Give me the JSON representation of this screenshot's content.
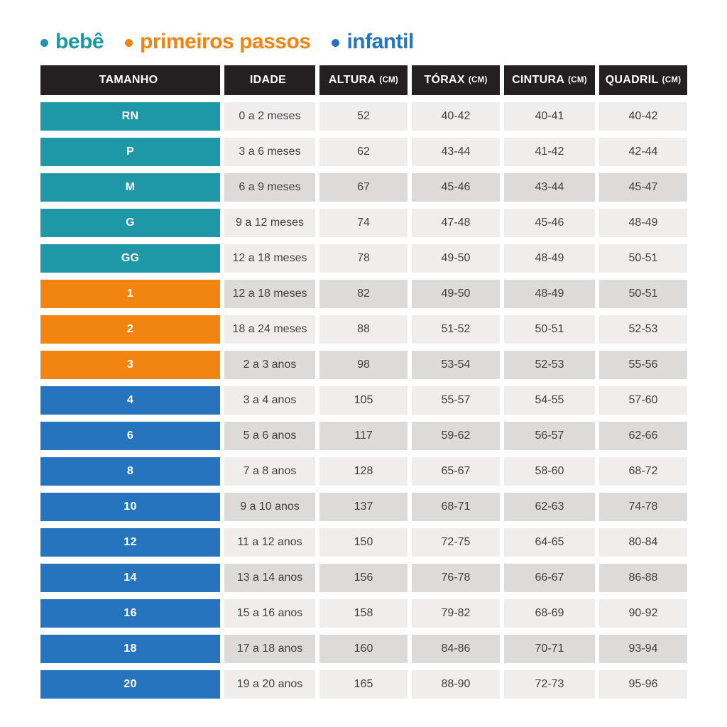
{
  "legend": {
    "items": [
      {
        "label": "bebê",
        "color": "#1e97a6"
      },
      {
        "label": "primeiros passos",
        "color": "#f28511"
      },
      {
        "label": "infantil",
        "color": "#2674bd"
      }
    ]
  },
  "colors": {
    "group_bebe": "#1e97a6",
    "group_primeiros_passos": "#f28511",
    "group_infantil": "#2674bd",
    "header_bg": "#242021",
    "row_light": "#efeeec",
    "row_dark": "#dcdbd9",
    "text": "#414042"
  },
  "chart_data": {
    "type": "table",
    "title": "",
    "columns": [
      {
        "label": "TAMANHO",
        "unit": ""
      },
      {
        "label": "IDADE",
        "unit": ""
      },
      {
        "label": "ALTURA",
        "unit": "(CM)"
      },
      {
        "label": "TÓRAX",
        "unit": "(CM)"
      },
      {
        "label": "CINTURA",
        "unit": "(CM)"
      },
      {
        "label": "QUADRIL",
        "unit": "(CM)"
      }
    ],
    "rows": [
      {
        "size": "RN",
        "group": "bebe",
        "shade": "light",
        "cells": [
          "0 a 2 meses",
          "52",
          "40-42",
          "40-41",
          "40-42"
        ]
      },
      {
        "size": "P",
        "group": "bebe",
        "shade": "light",
        "cells": [
          "3 a 6 meses",
          "62",
          "43-44",
          "41-42",
          "42-44"
        ]
      },
      {
        "size": "M",
        "group": "bebe",
        "shade": "dark",
        "cells": [
          "6 a 9 meses",
          "67",
          "45-46",
          "43-44",
          "45-47"
        ]
      },
      {
        "size": "G",
        "group": "bebe",
        "shade": "light",
        "cells": [
          "9 a 12 meses",
          "74",
          "47-48",
          "45-46",
          "48-49"
        ]
      },
      {
        "size": "GG",
        "group": "bebe",
        "shade": "light",
        "cells": [
          "12 a 18 meses",
          "78",
          "49-50",
          "48-49",
          "50-51"
        ]
      },
      {
        "size": "1",
        "group": "primeiros_passos",
        "shade": "dark",
        "cells": [
          "12 a 18 meses",
          "82",
          "49-50",
          "48-49",
          "50-51"
        ]
      },
      {
        "size": "2",
        "group": "primeiros_passos",
        "shade": "light",
        "cells": [
          "18 a 24 meses",
          "88",
          "51-52",
          "50-51",
          "52-53"
        ]
      },
      {
        "size": "3",
        "group": "primeiros_passos",
        "shade": "dark",
        "cells": [
          "2 a 3 anos",
          "98",
          "53-54",
          "52-53",
          "55-56"
        ]
      },
      {
        "size": "4",
        "group": "infantil",
        "shade": "light",
        "cells": [
          "3 a 4 anos",
          "105",
          "55-57",
          "54-55",
          "57-60"
        ]
      },
      {
        "size": "6",
        "group": "infantil",
        "shade": "dark",
        "cells": [
          "5 a 6 anos",
          "117",
          "59-62",
          "56-57",
          "62-66"
        ]
      },
      {
        "size": "8",
        "group": "infantil",
        "shade": "light",
        "cells": [
          "7 a 8 anos",
          "128",
          "65-67",
          "58-60",
          "68-72"
        ]
      },
      {
        "size": "10",
        "group": "infantil",
        "shade": "dark",
        "cells": [
          "9 a 10 anos",
          "137",
          "68-71",
          "62-63",
          "74-78"
        ]
      },
      {
        "size": "12",
        "group": "infantil",
        "shade": "light",
        "cells": [
          "11 a 12 anos",
          "150",
          "72-75",
          "64-65",
          "80-84"
        ]
      },
      {
        "size": "14",
        "group": "infantil",
        "shade": "dark",
        "cells": [
          "13 a 14 anos",
          "156",
          "76-78",
          "66-67",
          "86-88"
        ]
      },
      {
        "size": "16",
        "group": "infantil",
        "shade": "light",
        "cells": [
          "15 a 16 anos",
          "158",
          "79-82",
          "68-69",
          "90-92"
        ]
      },
      {
        "size": "18",
        "group": "infantil",
        "shade": "dark",
        "cells": [
          "17 a 18 anos",
          "160",
          "84-86",
          "70-71",
          "93-94"
        ]
      },
      {
        "size": "20",
        "group": "infantil",
        "shade": "light",
        "cells": [
          "19 a 20 anos",
          "165",
          "88-90",
          "72-73",
          "95-96"
        ]
      }
    ]
  }
}
